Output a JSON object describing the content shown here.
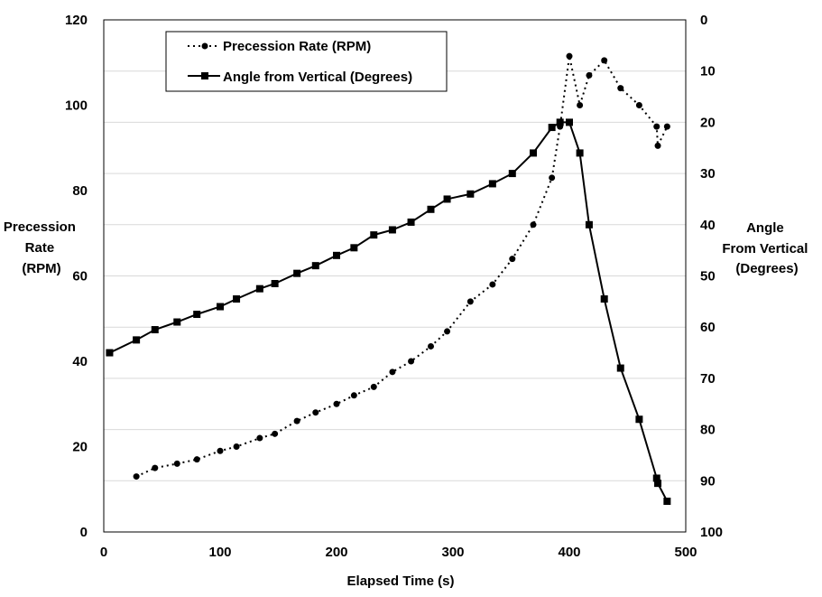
{
  "chart_data": {
    "type": "line",
    "xlabel": "Elapsed Time (s)",
    "ylabel_left": [
      "Precession",
      "Rate",
      "(RPM)"
    ],
    "ylabel_right": [
      "Angle",
      "From Vertical",
      "(Degrees)"
    ],
    "xlim": [
      0,
      500
    ],
    "ylim_left": [
      0,
      120
    ],
    "ylim_right": [
      0,
      100
    ],
    "right_axis_inverted": true,
    "x_ticks": [
      0,
      100,
      200,
      300,
      400,
      500
    ],
    "y_ticks_left": [
      0,
      20,
      40,
      60,
      80,
      100,
      120
    ],
    "y_ticks_right": [
      0,
      10,
      20,
      30,
      40,
      50,
      60,
      70,
      80,
      90,
      100
    ],
    "grid": "horizontal",
    "legend_position": "top-left",
    "colors": {
      "line": "#000000",
      "grid": "#d9d9d9"
    },
    "series": [
      {
        "name": "Precession Rate (RPM)",
        "axis": "left",
        "style": "dotted",
        "marker": "circle",
        "x": [
          28,
          44,
          63,
          80,
          100,
          114,
          134,
          147,
          166,
          182,
          200,
          215,
          232,
          248,
          264,
          281,
          295,
          315,
          334,
          351,
          369,
          385,
          392,
          400,
          409,
          417,
          430,
          444,
          460,
          475,
          476,
          484
        ],
        "y": [
          13,
          15,
          16,
          17,
          19,
          20,
          22,
          23,
          26,
          28,
          30,
          32,
          34,
          37.5,
          40,
          43.5,
          47,
          54,
          58,
          64,
          72,
          83,
          95,
          111.5,
          100,
          107,
          110.5,
          104,
          100,
          95,
          90.5,
          95
        ]
      },
      {
        "name": "Angle from Vertical (Degrees)",
        "axis": "right",
        "style": "solid",
        "marker": "square",
        "x": [
          5,
          28,
          44,
          63,
          80,
          100,
          114,
          134,
          147,
          166,
          182,
          200,
          215,
          232,
          248,
          264,
          281,
          295,
          315,
          334,
          351,
          369,
          385,
          392,
          400,
          409,
          417,
          430,
          444,
          460,
          475,
          476,
          484
        ],
        "y": [
          65,
          62.5,
          60.5,
          59,
          57.5,
          56,
          54.5,
          52.5,
          51.5,
          49.5,
          48,
          46,
          44.5,
          42,
          41,
          39.5,
          37,
          35,
          34,
          32,
          30,
          26,
          21,
          20,
          20,
          26,
          40,
          54.5,
          68,
          78,
          89.5,
          90.5,
          94
        ]
      }
    ]
  }
}
